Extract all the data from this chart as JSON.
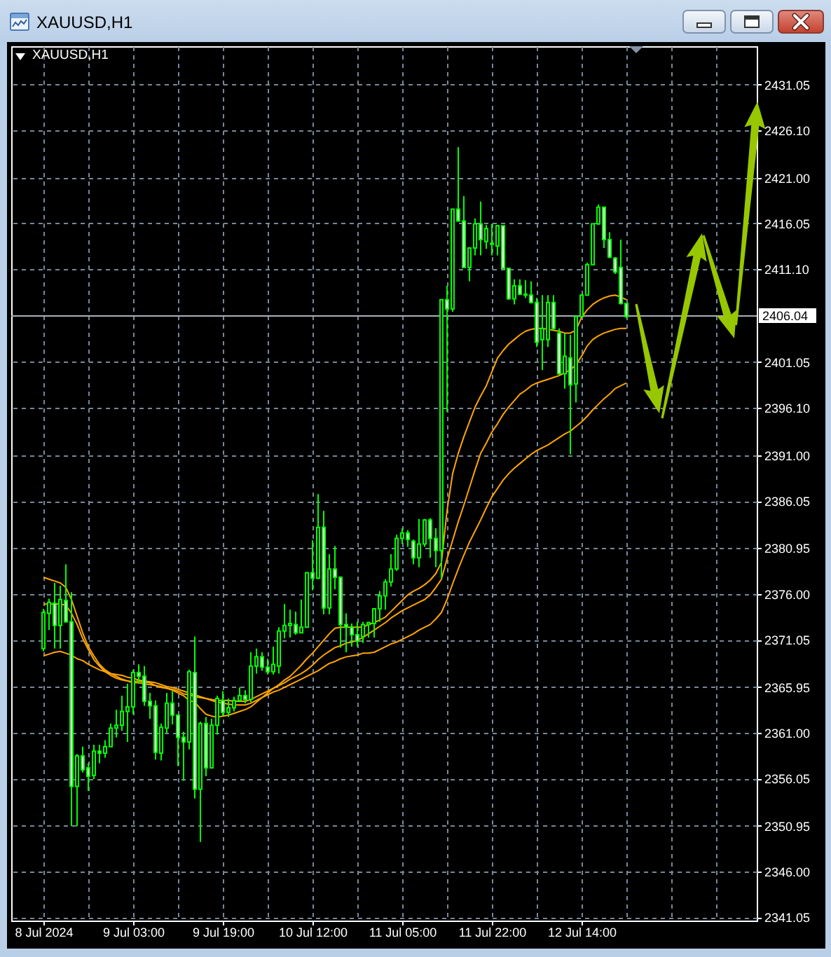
{
  "chart_data": {
    "type": "candlestick",
    "title": "XAUUSD,H1",
    "categories": [
      "8 Jul 2024",
      null,
      null,
      null,
      null,
      null,
      null,
      null,
      null,
      null,
      null,
      null,
      null,
      null,
      null,
      null,
      "9 Jul 03:00",
      null,
      null,
      null,
      null,
      null,
      null,
      null,
      null,
      null,
      null,
      null,
      null,
      null,
      null,
      null,
      "9 Jul 19:00",
      null,
      null,
      null,
      null,
      null,
      null,
      null,
      null,
      null,
      null,
      null,
      null,
      null,
      null,
      null,
      "10 Jul 12:00",
      null,
      null,
      null,
      null,
      null,
      null,
      null,
      null,
      null,
      null,
      null,
      null,
      null,
      null,
      null,
      "11 Jul 05:00",
      null,
      null,
      null,
      null,
      null,
      null,
      null,
      null,
      null,
      null,
      null,
      null,
      null,
      null,
      null,
      "11 Jul 22:00",
      null,
      null,
      null,
      null,
      null,
      null,
      null,
      null,
      null,
      null,
      null,
      null,
      null,
      null,
      null,
      "12 Jul 14:00",
      null,
      null,
      null,
      null,
      null,
      null,
      null,
      null
    ],
    "ohlc": [
      [
        2370.1,
        2374.4,
        2369.8,
        2374.0
      ],
      [
        2373.9,
        2375.5,
        2372.1,
        2375.1
      ],
      [
        2375.0,
        2377.2,
        2370.1,
        2372.6
      ],
      [
        2372.6,
        2376.9,
        2370.1,
        2375.4
      ],
      [
        2375.3,
        2379.2,
        2372.9,
        2373.0
      ],
      [
        2373.0,
        2376.2,
        2350.9,
        2355.2
      ],
      [
        2355.2,
        2358.7,
        2350.9,
        2358.5
      ],
      [
        2358.5,
        2359.5,
        2356.7,
        2357.0
      ],
      [
        2357.2,
        2357.7,
        2354.7,
        2356.3
      ],
      [
        2356.4,
        2359.7,
        2356.0,
        2359.0
      ],
      [
        2359.0,
        2359.7,
        2357.7,
        2358.8
      ],
      [
        2358.8,
        2360.2,
        2358.3,
        2359.5
      ],
      [
        2359.5,
        2362.0,
        2359.5,
        2361.5
      ],
      [
        2361.5,
        2363.5,
        2360.5,
        2361.8
      ],
      [
        2361.8,
        2365.0,
        2361.2,
        2363.3
      ],
      [
        2363.3,
        2366.3,
        2360.0,
        2363.8
      ],
      [
        2363.8,
        2367.8,
        2363.0,
        2367.5
      ],
      [
        2367.5,
        2368.4,
        2366.3,
        2367.1
      ],
      [
        2367.1,
        2368.2,
        2363.9,
        2364.4
      ],
      [
        2364.4,
        2365.3,
        2362.5,
        2363.9
      ],
      [
        2363.9,
        2364.5,
        2358.1,
        2358.9
      ],
      [
        2358.8,
        2362.0,
        2358.0,
        2361.6
      ],
      [
        2361.5,
        2365.3,
        2361.0,
        2364.2
      ],
      [
        2364.2,
        2365.5,
        2361.9,
        2362.9
      ],
      [
        2362.9,
        2362.9,
        2357.4,
        2360.5
      ],
      [
        2360.5,
        2361.1,
        2355.8,
        2360.0
      ],
      [
        2360.0,
        2367.8,
        2359.2,
        2367.6
      ],
      [
        2367.5,
        2371.4,
        2353.9,
        2354.9
      ],
      [
        2354.9,
        2362.2,
        2349.2,
        2362.0
      ],
      [
        2362.0,
        2362.7,
        2356.3,
        2357.2
      ],
      [
        2357.2,
        2362.5,
        2357.2,
        2361.8
      ],
      [
        2361.8,
        2365.0,
        2360.8,
        2364.7
      ],
      [
        2364.5,
        2365.5,
        2362.8,
        2363.2
      ],
      [
        2363.2,
        2364.7,
        2362.7,
        2363.7
      ],
      [
        2363.7,
        2364.9,
        2363.3,
        2364.5
      ],
      [
        2364.5,
        2365.9,
        2364.3,
        2365.0
      ],
      [
        2365.0,
        2365.6,
        2364.2,
        2364.6
      ],
      [
        2364.6,
        2369.7,
        2364.3,
        2368.2
      ],
      [
        2368.2,
        2370.1,
        2367.4,
        2369.2
      ],
      [
        2369.2,
        2369.7,
        2367.7,
        2368.1
      ],
      [
        2368.1,
        2369.0,
        2367.3,
        2367.6
      ],
      [
        2367.6,
        2370.3,
        2367.3,
        2368.4
      ],
      [
        2368.2,
        2372.4,
        2367.4,
        2372.0
      ],
      [
        2372.0,
        2374.9,
        2371.2,
        2372.6
      ],
      [
        2372.6,
        2374.3,
        2371.3,
        2372.8
      ],
      [
        2372.7,
        2374.1,
        2371.6,
        2371.8
      ],
      [
        2371.8,
        2375.4,
        2371.8,
        2372.4
      ],
      [
        2372.4,
        2378.3,
        2372.4,
        2378.3
      ],
      [
        2378.3,
        2381.8,
        2376.4,
        2377.7
      ],
      [
        2377.7,
        2386.8,
        2377.6,
        2383.2
      ],
      [
        2383.2,
        2385.0,
        2373.8,
        2374.5
      ],
      [
        2374.5,
        2380.3,
        2373.8,
        2378.7
      ],
      [
        2378.7,
        2381.2,
        2376.5,
        2377.8
      ],
      [
        2377.8,
        2377.9,
        2370.2,
        2372.7
      ],
      [
        2372.7,
        2373.9,
        2369.7,
        2372.4
      ],
      [
        2372.4,
        2372.8,
        2370.3,
        2371.6
      ],
      [
        2371.6,
        2373.0,
        2370.3,
        2370.9
      ],
      [
        2371.4,
        2373.0,
        2370.7,
        2372.7
      ],
      [
        2372.7,
        2373.0,
        2371.3,
        2372.9
      ],
      [
        2372.8,
        2374.4,
        2371.3,
        2374.4
      ],
      [
        2374.4,
        2376.3,
        2373.0,
        2375.8
      ],
      [
        2375.8,
        2377.6,
        2374.3,
        2377.3
      ],
      [
        2377.3,
        2380.3,
        2376.8,
        2378.7
      ],
      [
        2378.7,
        2382.4,
        2378.5,
        2382.0
      ],
      [
        2382.0,
        2383.1,
        2381.4,
        2382.6
      ],
      [
        2382.6,
        2382.9,
        2381.1,
        2381.9
      ],
      [
        2381.7,
        2381.9,
        2379.2,
        2379.9
      ],
      [
        2379.9,
        2384.1,
        2378.9,
        2381.4
      ],
      [
        2381.4,
        2384.1,
        2381.1,
        2384.0
      ],
      [
        2384.0,
        2384.2,
        2379.9,
        2382.0
      ],
      [
        2382.0,
        2383.1,
        2378.9,
        2380.7
      ],
      [
        2380.7,
        2407.8,
        2377.7,
        2407.8
      ],
      [
        2407.8,
        2409.3,
        2395.7,
        2406.8
      ],
      [
        2406.8,
        2417.6,
        2406.5,
        2417.6
      ],
      [
        2417.6,
        2424.3,
        2416.3,
        2416.3
      ],
      [
        2416.3,
        2419.0,
        2411.3,
        2411.3
      ],
      [
        2411.3,
        2413.4,
        2409.8,
        2413.4
      ],
      [
        2413.4,
        2416.6,
        2412.6,
        2416.0
      ],
      [
        2416.0,
        2418.4,
        2412.6,
        2414.3
      ],
      [
        2414.1,
        2415.9,
        2413.3,
        2415.5
      ],
      [
        2413.9,
        2416.0,
        2412.6,
        2413.8
      ],
      [
        2413.6,
        2415.9,
        2412.6,
        2415.8
      ],
      [
        2415.8,
        2415.8,
        2411.2,
        2411.2
      ],
      [
        2411.2,
        2411.2,
        2407.8,
        2407.9
      ],
      [
        2407.9,
        2410.0,
        2407.3,
        2409.3
      ],
      [
        2409.3,
        2410.0,
        2408.3,
        2408.4
      ],
      [
        2408.4,
        2409.9,
        2408.0,
        2408.3
      ],
      [
        2408.3,
        2409.8,
        2407.4,
        2407.5
      ],
      [
        2407.5,
        2408.0,
        2402.7,
        2403.2
      ],
      [
        2403.5,
        2408.3,
        2400.2,
        2404.7
      ],
      [
        2403.5,
        2408.3,
        2402.7,
        2407.5
      ],
      [
        2407.5,
        2408.3,
        2404.5,
        2404.7
      ],
      [
        2404.2,
        2404.7,
        2399.7,
        2399.8
      ],
      [
        2399.8,
        2404.2,
        2398.2,
        2401.7
      ],
      [
        2401.5,
        2404.0,
        2391.1,
        2398.6
      ],
      [
        2398.7,
        2406.0,
        2396.7,
        2406.0
      ],
      [
        2406.0,
        2408.4,
        2406.0,
        2408.3
      ],
      [
        2408.3,
        2411.8,
        2408.3,
        2411.6
      ],
      [
        2411.6,
        2416.0,
        2411.6,
        2416.0
      ],
      [
        2416.0,
        2418.1,
        2415.9,
        2417.8
      ],
      [
        2417.8,
        2417.8,
        2413.4,
        2414.3
      ],
      [
        2414.3,
        2415.1,
        2412.3,
        2412.4
      ],
      [
        2412.3,
        2412.4,
        2410.6,
        2410.8
      ],
      [
        2411.3,
        2414.3,
        2407.3,
        2407.4
      ],
      [
        2407.4,
        2407.4,
        2405.8,
        2406.0
      ]
    ],
    "color": "#00ff00",
    "colors": [
      "#000000",
      "#000000",
      "#ffffff",
      "#000000",
      "#ffffff",
      "#ffffff",
      "#000000",
      "#ffffff",
      "#ffffff",
      "#000000",
      "#ffffff",
      "#000000",
      "#000000",
      "#000000",
      "#000000",
      "#000000",
      "#000000",
      "#ffffff",
      "#ffffff",
      "#ffffff",
      "#ffffff",
      "#000000",
      "#000000",
      "#ffffff",
      "#ffffff",
      "#ffffff",
      "#000000",
      "#ffffff",
      "#000000",
      "#ffffff",
      "#000000",
      "#000000",
      "#ffffff",
      "#000000",
      "#000000",
      "#000000",
      "#ffffff",
      "#000000",
      "#000000",
      "#ffffff",
      "#ffffff",
      "#000000",
      "#000000",
      "#000000",
      "#000000",
      "#ffffff",
      "#000000",
      "#000000",
      "#ffffff",
      "#000000",
      "#ffffff",
      "#000000",
      "#ffffff",
      "#ffffff",
      "#ffffff",
      "#ffffff",
      "#ffffff",
      "#000000",
      "#000000",
      "#000000",
      "#000000",
      "#000000",
      "#000000",
      "#000000",
      "#000000",
      "#ffffff",
      "#ffffff",
      "#000000",
      "#000000",
      "#ffffff",
      "#ffffff",
      "#000000",
      "#ffffff",
      "#000000",
      "#ffffff",
      "#ffffff",
      "#000000",
      "#000000",
      "#ffffff",
      "#000000",
      "#ffffff",
      "#000000",
      "#ffffff",
      "#ffffff",
      "#000000",
      "#ffffff",
      "#ffffff",
      "#ffffff",
      "#ffffff",
      "#000000",
      "#000000",
      "#ffffff",
      "#ffffff",
      "#000000",
      "#ffffff",
      "#000000",
      "#000000",
      "#000000",
      "#000000",
      "#000000",
      "#ffffff",
      "#ffffff",
      "#ffffff",
      "#ffffff",
      "#ffffff"
    ],
    "series": [
      {
        "type": "line",
        "color": "#ffa500",
        "values": [
          2374.9,
          2374.9,
          2374.9,
          2374.9,
          2374.8,
          2373.9,
          2372.7,
          2371.2,
          2370.0,
          2368.9,
          2368.2,
          2367.6,
          2367.2,
          2366.9,
          2366.7,
          2366.6,
          2366.5,
          2366.6,
          2366.5,
          2366.4,
          2366.1,
          2365.9,
          2365.8,
          2365.6,
          2365.3,
          2365.0,
          2364.5,
          2364.3,
          2363.6,
          2363.0,
          2362.8,
          2362.7,
          2362.8,
          2362.9,
          2363.1,
          2363.3,
          2363.5,
          2363.8,
          2364.3,
          2364.8,
          2365.3,
          2365.8,
          2366.2,
          2366.7,
          2367.1,
          2367.7,
          2368.3,
          2369.0,
          2369.6,
          2370.3,
          2371.0,
          2371.7,
          2372.3,
          2372.4,
          2372.4,
          2372.4,
          2372.4,
          2372.4,
          2372.7,
          2372.9,
          2373.2,
          2373.5,
          2374.1,
          2374.7,
          2375.3,
          2375.9,
          2376.3,
          2376.6,
          2377.0,
          2377.5,
          2378.2,
          2379.4,
          2385.0,
          2389.0,
          2391.2,
          2393.0,
          2394.6,
          2396.2,
          2397.4,
          2398.5,
          2400.0,
          2401.5,
          2402.3,
          2403.0,
          2403.5,
          2404.0,
          2404.4,
          2404.6,
          2404.7,
          2404.7,
          2404.6,
          2404.5,
          2404.4,
          2404.2,
          2404.2,
          2404.5,
          2405.9,
          2406.7,
          2407.3,
          2407.7,
          2408.0,
          2408.2,
          2408.3,
          2408.1,
          2407.8
        ]
      },
      {
        "type": "line",
        "color": "#ffa500",
        "values": [
          2377.8,
          2377.6,
          2377.4,
          2377.2,
          2376.7,
          2375.4,
          2373.6,
          2371.8,
          2370.3,
          2369.3,
          2368.4,
          2367.8,
          2367.4,
          2367.1,
          2366.8,
          2366.6,
          2366.4,
          2366.4,
          2366.3,
          2366.2,
          2366.1,
          2366.0,
          2365.8,
          2365.7,
          2365.5,
          2365.2,
          2365.1,
          2364.9,
          2364.8,
          2364.7,
          2364.6,
          2364.5,
          2364.5,
          2364.5,
          2364.4,
          2364.4,
          2364.4,
          2364.6,
          2364.9,
          2365.2,
          2365.5,
          2365.8,
          2366.1,
          2366.4,
          2366.8,
          2367.1,
          2367.4,
          2367.8,
          2368.3,
          2368.9,
          2369.4,
          2369.8,
          2370.2,
          2370.4,
          2370.7,
          2370.8,
          2371.0,
          2371.3,
          2371.7,
          2372.1,
          2372.5,
          2372.9,
          2373.4,
          2373.8,
          2374.2,
          2374.5,
          2374.8,
          2375.1,
          2375.4,
          2375.9,
          2376.7,
          2377.6,
          2379.8,
          2381.8,
          2383.8,
          2385.6,
          2387.5,
          2389.4,
          2391.2,
          2392.3,
          2393.5,
          2394.4,
          2395.4,
          2396.2,
          2396.9,
          2397.6,
          2398.0,
          2398.5,
          2398.8,
          2399.0,
          2399.2,
          2399.4,
          2399.6,
          2399.9,
          2400.2,
          2400.8,
          2401.7,
          2402.8,
          2403.5,
          2403.9,
          2404.2,
          2404.4,
          2404.6,
          2404.7,
          2404.7
        ]
      },
      {
        "type": "line",
        "color": "#ffa500",
        "values": [
          2369.3,
          2369.5,
          2369.7,
          2369.8,
          2369.6,
          2369.4,
          2369.0,
          2368.8,
          2368.4,
          2368.1,
          2367.8,
          2367.6,
          2367.4,
          2367.3,
          2367.2,
          2367.0,
          2366.9,
          2366.7,
          2366.6,
          2366.5,
          2366.4,
          2366.2,
          2366.0,
          2365.9,
          2365.7,
          2365.5,
          2365.3,
          2365.1,
          2364.9,
          2364.7,
          2364.5,
          2364.3,
          2364.2,
          2364.1,
          2364.0,
          2364.0,
          2364.0,
          2364.2,
          2364.5,
          2364.8,
          2365.1,
          2365.4,
          2365.6,
          2365.9,
          2366.2,
          2366.5,
          2366.8,
          2367.1,
          2367.4,
          2367.7,
          2368.1,
          2368.5,
          2368.7,
          2369.0,
          2369.2,
          2369.3,
          2369.4,
          2369.6,
          2369.6,
          2369.7,
          2370.0,
          2370.3,
          2370.6,
          2370.8,
          2371.1,
          2371.4,
          2371.7,
          2372.1,
          2372.4,
          2372.7,
          2373.3,
          2374.0,
          2375.4,
          2377.1,
          2378.7,
          2380.2,
          2381.6,
          2382.8,
          2384.0,
          2385.3,
          2386.5,
          2387.4,
          2388.3,
          2389.0,
          2389.6,
          2390.1,
          2390.6,
          2391.1,
          2391.5,
          2391.8,
          2392.1,
          2392.5,
          2392.9,
          2393.3,
          2393.6,
          2394.1,
          2394.6,
          2395.2,
          2395.9,
          2396.5,
          2397.1,
          2397.6,
          2398.2,
          2398.5,
          2398.8
        ]
      }
    ],
    "ylim": [
      2340.7,
      2435.2
    ],
    "yticks": [
      2341.05,
      {
        "value": 2346,
        "label": "2346.00"
      },
      2350.95,
      2356.05,
      {
        "value": 2361,
        "label": "2361.00"
      },
      2365.95,
      2371.05,
      {
        "value": 2376,
        "label": "2376.00"
      },
      2380.95,
      2386.05,
      {
        "value": 2391,
        "label": "2391.00"
      },
      {
        "value": 2396.1,
        "label": "2396.10"
      },
      2401.05,
      {
        "value": 2411.1,
        "label": "2411.10"
      },
      2416.05,
      {
        "value": 2421,
        "label": "2421.00"
      },
      {
        "value": 2426.1,
        "label": "2426.10"
      },
      2431.05
    ],
    "grid": true,
    "ref_lines": [
      {
        "axis": "y",
        "value": 2406.04,
        "label": "2406.04",
        "color": "#aab0ba"
      }
    ]
  }
}
